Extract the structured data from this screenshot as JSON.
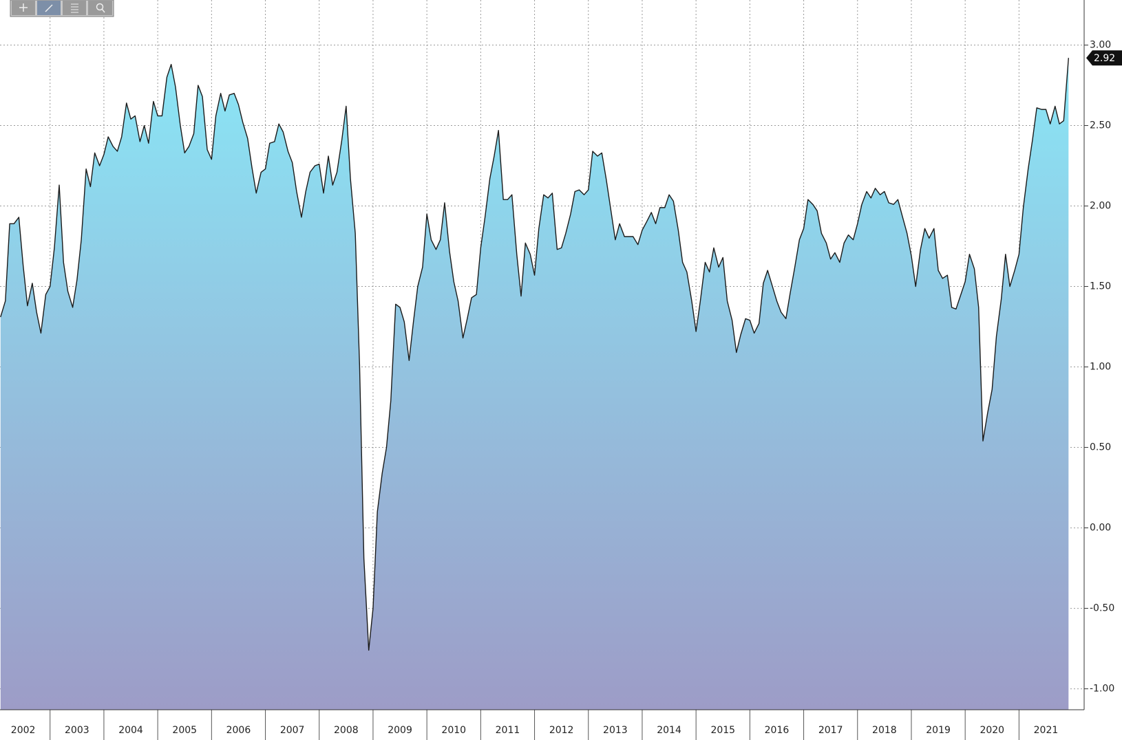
{
  "chart_data": {
    "type": "area",
    "x": [
      2002.08,
      2002.17,
      2002.25,
      2002.33,
      2002.42,
      2002.5,
      2002.58,
      2002.67,
      2002.75,
      2002.83,
      2002.92,
      2003,
      2003.08,
      2003.17,
      2003.25,
      2003.33,
      2003.42,
      2003.5,
      2003.58,
      2003.67,
      2003.75,
      2003.83,
      2003.92,
      2004,
      2004.08,
      2004.17,
      2004.25,
      2004.33,
      2004.42,
      2004.5,
      2004.58,
      2004.67,
      2004.75,
      2004.83,
      2004.92,
      2005,
      2005.08,
      2005.17,
      2005.25,
      2005.33,
      2005.42,
      2005.5,
      2005.58,
      2005.67,
      2005.75,
      2005.83,
      2005.92,
      2006,
      2006.08,
      2006.17,
      2006.25,
      2006.33,
      2006.42,
      2006.5,
      2006.58,
      2006.67,
      2006.75,
      2006.83,
      2006.92,
      2007,
      2007.08,
      2007.17,
      2007.25,
      2007.33,
      2007.42,
      2007.5,
      2007.58,
      2007.67,
      2007.75,
      2007.83,
      2007.92,
      2008,
      2008.08,
      2008.17,
      2008.25,
      2008.33,
      2008.42,
      2008.5,
      2008.58,
      2008.67,
      2008.75,
      2008.83,
      2008.92,
      2009,
      2009.08,
      2009.17,
      2009.25,
      2009.33,
      2009.42,
      2009.5,
      2009.58,
      2009.67,
      2009.75,
      2009.83,
      2009.92,
      2010,
      2010.08,
      2010.17,
      2010.25,
      2010.33,
      2010.42,
      2010.5,
      2010.58,
      2010.67,
      2010.75,
      2010.83,
      2010.92,
      2011,
      2011.08,
      2011.17,
      2011.25,
      2011.33,
      2011.42,
      2011.5,
      2011.58,
      2011.67,
      2011.75,
      2011.83,
      2011.92,
      2012,
      2012.08,
      2012.17,
      2012.25,
      2012.33,
      2012.42,
      2012.5,
      2012.58,
      2012.67,
      2012.75,
      2012.83,
      2012.92,
      2013,
      2013.08,
      2013.17,
      2013.25,
      2013.33,
      2013.42,
      2013.5,
      2013.58,
      2013.67,
      2013.75,
      2013.83,
      2013.92,
      2014,
      2014.08,
      2014.17,
      2014.25,
      2014.33,
      2014.42,
      2014.5,
      2014.58,
      2014.67,
      2014.75,
      2014.83,
      2014.92,
      2015,
      2015.08,
      2015.17,
      2015.25,
      2015.33,
      2015.42,
      2015.5,
      2015.58,
      2015.67,
      2015.75,
      2015.83,
      2015.92,
      2016,
      2016.08,
      2016.17,
      2016.25,
      2016.33,
      2016.42,
      2016.5,
      2016.58,
      2016.67,
      2016.75,
      2016.83,
      2016.92,
      2017,
      2017.08,
      2017.17,
      2017.25,
      2017.33,
      2017.42,
      2017.5,
      2017.58,
      2017.67,
      2017.75,
      2017.83,
      2017.92,
      2018,
      2018.08,
      2018.17,
      2018.25,
      2018.33,
      2018.42,
      2018.5,
      2018.58,
      2018.67,
      2018.75,
      2018.83,
      2018.92,
      2019,
      2019.08,
      2019.17,
      2019.25,
      2019.33,
      2019.42,
      2019.5,
      2019.58,
      2019.67,
      2019.75,
      2019.83,
      2019.92,
      2020,
      2020.08,
      2020.17,
      2020.25,
      2020.33,
      2020.42,
      2020.5,
      2020.58,
      2020.67,
      2020.75,
      2020.83,
      2020.92,
      2021,
      2021.08,
      2021.17,
      2021.25,
      2021.33,
      2021.42,
      2021.5,
      2021.58,
      2021.67,
      2021.75,
      2021.83,
      2021.92
    ],
    "values": [
      1.31,
      1.41,
      1.89,
      1.89,
      1.93,
      1.63,
      1.38,
      1.52,
      1.34,
      1.21,
      1.45,
      1.5,
      1.74,
      2.13,
      1.65,
      1.47,
      1.37,
      1.54,
      1.79,
      2.23,
      2.12,
      2.33,
      2.25,
      2.32,
      2.43,
      2.37,
      2.34,
      2.43,
      2.64,
      2.54,
      2.56,
      2.4,
      2.5,
      2.39,
      2.65,
      2.56,
      2.56,
      2.8,
      2.88,
      2.74,
      2.5,
      2.33,
      2.37,
      2.45,
      2.75,
      2.68,
      2.35,
      2.29,
      2.56,
      2.7,
      2.59,
      2.69,
      2.7,
      2.63,
      2.52,
      2.42,
      2.24,
      2.08,
      2.21,
      2.23,
      2.39,
      2.4,
      2.51,
      2.46,
      2.34,
      2.27,
      2.09,
      1.93,
      2.09,
      2.21,
      2.25,
      2.26,
      2.08,
      2.31,
      2.13,
      2.21,
      2.41,
      2.62,
      2.17,
      1.83,
      1.01,
      -0.19,
      -0.76,
      -0.5,
      0.1,
      0.34,
      0.5,
      0.79,
      1.39,
      1.37,
      1.28,
      1.04,
      1.28,
      1.5,
      1.62,
      1.95,
      1.79,
      1.73,
      1.79,
      2.02,
      1.72,
      1.53,
      1.41,
      1.18,
      1.3,
      1.43,
      1.45,
      1.74,
      1.93,
      2.17,
      2.31,
      2.47,
      2.04,
      2.04,
      2.07,
      1.7,
      1.44,
      1.77,
      1.7,
      1.57,
      1.86,
      2.07,
      2.05,
      2.08,
      1.73,
      1.74,
      1.83,
      1.95,
      2.09,
      2.1,
      2.07,
      2.1,
      2.34,
      2.31,
      2.33,
      2.17,
      1.97,
      1.79,
      1.89,
      1.81,
      1.81,
      1.81,
      1.76,
      1.85,
      1.9,
      1.96,
      1.89,
      1.99,
      1.99,
      2.07,
      2.03,
      1.85,
      1.65,
      1.59,
      1.41,
      1.22,
      1.41,
      1.65,
      1.59,
      1.74,
      1.62,
      1.68,
      1.41,
      1.29,
      1.09,
      1.2,
      1.3,
      1.29,
      1.21,
      1.27,
      1.52,
      1.6,
      1.5,
      1.41,
      1.34,
      1.3,
      1.46,
      1.61,
      1.79,
      1.86,
      2.04,
      2.01,
      1.97,
      1.83,
      1.77,
      1.67,
      1.71,
      1.65,
      1.77,
      1.82,
      1.79,
      1.89,
      2.01,
      2.09,
      2.05,
      2.11,
      2.07,
      2.09,
      2.02,
      2.01,
      2.04,
      1.94,
      1.83,
      1.69,
      1.5,
      1.73,
      1.86,
      1.8,
      1.86,
      1.6,
      1.55,
      1.57,
      1.37,
      1.36,
      1.45,
      1.53,
      1.7,
      1.61,
      1.37,
      0.54,
      0.72,
      0.86,
      1.19,
      1.42,
      1.7,
      1.5,
      1.6,
      1.7,
      1.99,
      2.23,
      2.41,
      2.61,
      2.6,
      2.6,
      2.51,
      2.62,
      2.51,
      2.53,
      2.92
    ],
    "color": "#1a1a1a",
    "area_colors": [
      "#8ae6f6",
      "#9d9cc7"
    ],
    "xlim": [
      2002.07,
      2022.21
    ],
    "xticks": [
      2002,
      2003,
      2004,
      2005,
      2006,
      2007,
      2008,
      2009,
      2010,
      2011,
      2012,
      2013,
      2014,
      2015,
      2016,
      2017,
      2018,
      2019,
      2020,
      2021
    ],
    "ylim": [
      -1.13,
      3.28
    ],
    "yticks": [
      {
        "value": -1,
        "label": "-1.00"
      },
      {
        "value": -0.5,
        "label": "-0.50"
      },
      {
        "value": 0,
        "label": "0.00"
      },
      {
        "value": 0.5,
        "label": "0.50"
      },
      {
        "value": 1,
        "label": "1.00"
      },
      {
        "value": 1.5,
        "label": "1.50"
      },
      {
        "value": 2,
        "label": "2.00"
      },
      {
        "value": 2.5,
        "label": "2.50"
      },
      {
        "value": 3,
        "label": "3.00"
      }
    ],
    "grid": true,
    "last_value_tag": true
  }
}
